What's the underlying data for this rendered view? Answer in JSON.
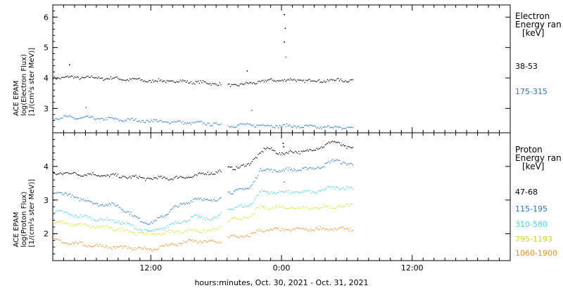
{
  "colors": {
    "black": "#000000",
    "blue": "#1f78d1",
    "cyan": "#3fd8d8",
    "yellow": "#d4e61e",
    "orange": "#ee8c1e"
  },
  "x_axis": {
    "title": "hours:minutes, Oct. 30, 2021 - Oct. 31, 2021",
    "tick_labels": [
      "12:00",
      "0:00",
      "12:00"
    ]
  },
  "electron_panel": {
    "ylabel_line1": "ACE EPAM",
    "ylabel_line2": "log(Electron Flux)",
    "ylabel_line3": "[1/(cm²s ster MeV)]",
    "title_line1": "Electron",
    "title_line2": "Energy ran",
    "unit": "[keV]",
    "channels": [
      {
        "label": "38-53",
        "color": "#000000"
      },
      {
        "label": "175-315",
        "color": "#1f78d1"
      }
    ]
  },
  "proton_panel": {
    "ylabel_line1": "ACE EPAM",
    "ylabel_line2": "log(Proton Flux)",
    "ylabel_line3": "[1/(cm²s ster MeV)]",
    "title_line1": "Proton",
    "title_line2": "Energy ran",
    "unit": "[keV]",
    "channels": [
      {
        "label": "47-68",
        "color": "#000000"
      },
      {
        "label": "115-195",
        "color": "#1f78d1"
      },
      {
        "label": "310-580",
        "color": "#3fd8d8"
      },
      {
        "label": "795-1193",
        "color": "#d4e61e"
      },
      {
        "label": "1060-1900",
        "color": "#ee8c1e"
      }
    ]
  },
  "chart_data": [
    {
      "type": "scatter",
      "panel": "electron",
      "xlabel": "hours:minutes, Oct. 30, 2021 - Oct. 31, 2021",
      "ylabel": "log(Electron Flux) [1/(cm²s ster MeV)]",
      "x_unit": "hours since Oct. 30, 2021 0:00",
      "xlim": [
        3,
        45
      ],
      "ylim": [
        2.2,
        6.4
      ],
      "yticks": [
        3,
        4,
        5,
        6
      ],
      "data_gap_hours": [
        18.4,
        19.0
      ],
      "series": [
        {
          "name": "38-53",
          "color": "#000000",
          "x": [
            3,
            6,
            9,
            12,
            15,
            18,
            19,
            21,
            22,
            24,
            27,
            30.5
          ],
          "y": [
            4.03,
            4.03,
            3.99,
            3.92,
            3.9,
            3.83,
            3.77,
            3.82,
            3.9,
            3.95,
            3.92,
            3.95
          ]
        },
        {
          "name": "175-315",
          "color": "#1f78d1",
          "x": [
            3,
            6,
            9,
            12,
            15,
            18,
            19,
            21,
            24,
            27,
            30.5
          ],
          "y": [
            2.72,
            2.7,
            2.65,
            2.6,
            2.55,
            2.5,
            2.45,
            2.47,
            2.44,
            2.4,
            2.38
          ]
        }
      ],
      "outliers": [
        {
          "x": 4.5,
          "y": 4.45,
          "series": "38-53"
        },
        {
          "x": 6.0,
          "y": 3.05,
          "series": "175-315"
        },
        {
          "x": 20.8,
          "y": 4.25,
          "series": "38-53"
        },
        {
          "x": 24.2,
          "y": 6.1,
          "series": "38-53"
        },
        {
          "x": 24.3,
          "y": 5.65,
          "series": "38-53"
        },
        {
          "x": 24.2,
          "y": 5.2,
          "series": "38-53"
        },
        {
          "x": 24.35,
          "y": 4.7,
          "series": "175-315"
        },
        {
          "x": 21.2,
          "y": 2.95,
          "series": "175-315"
        }
      ]
    },
    {
      "type": "scatter",
      "panel": "proton",
      "xlabel": "hours:minutes, Oct. 30, 2021 - Oct. 31, 2021",
      "ylabel": "log(Proton Flux) [1/(cm²s ster MeV)]",
      "x_unit": "hours since Oct. 30, 2021 0:00",
      "xlim": [
        3,
        45
      ],
      "ylim": [
        1.2,
        5.0
      ],
      "yticks": [
        2,
        3,
        4
      ],
      "data_gap_hours": [
        18.4,
        19.0
      ],
      "series": [
        {
          "name": "47-68",
          "color": "#000000",
          "x": [
            3,
            6,
            9,
            12,
            15,
            18,
            19,
            21,
            21.6,
            22.5,
            24,
            27,
            28.5,
            30.5
          ],
          "y": [
            3.82,
            3.78,
            3.72,
            3.65,
            3.68,
            3.85,
            3.95,
            4.05,
            4.3,
            4.55,
            4.4,
            4.5,
            4.75,
            4.55
          ]
        },
        {
          "name": "115-195",
          "color": "#1f78d1",
          "x": [
            3,
            5,
            7,
            9,
            10.5,
            12,
            14,
            16,
            18,
            19,
            21,
            22,
            24,
            27,
            29,
            30.5
          ],
          "y": [
            3.28,
            3.1,
            2.9,
            2.85,
            2.5,
            2.3,
            2.75,
            3.05,
            3.0,
            3.25,
            3.35,
            3.9,
            3.9,
            3.95,
            4.2,
            4.05
          ]
        },
        {
          "name": "310-580",
          "color": "#3fd8d8",
          "x": [
            3,
            5,
            7,
            9,
            10.5,
            12,
            14,
            16,
            18,
            19,
            21,
            22,
            24,
            27,
            29,
            30.5
          ],
          "y": [
            2.7,
            2.55,
            2.45,
            2.38,
            2.2,
            2.05,
            2.3,
            2.5,
            2.45,
            2.75,
            2.85,
            3.25,
            3.25,
            3.25,
            3.4,
            3.35
          ]
        },
        {
          "name": "795-1193",
          "color": "#d4e61e",
          "x": [
            3,
            6,
            9,
            10.5,
            12,
            15,
            18,
            19,
            21,
            22,
            24,
            27,
            30.5
          ],
          "y": [
            2.35,
            2.25,
            2.15,
            2.05,
            2.0,
            2.1,
            2.1,
            2.4,
            2.5,
            2.8,
            2.8,
            2.78,
            2.85
          ]
        },
        {
          "name": "1060-1900",
          "color": "#ee8c1e",
          "x": [
            3,
            6,
            9,
            12,
            14,
            16,
            18,
            19,
            21,
            22,
            24,
            27,
            30.5
          ],
          "y": [
            1.82,
            1.68,
            1.6,
            1.55,
            1.7,
            1.8,
            1.75,
            1.9,
            1.95,
            2.12,
            2.12,
            2.15,
            2.15
          ]
        }
      ],
      "outliers": [
        {
          "x": 24.1,
          "y": 4.7,
          "series": "47-68"
        },
        {
          "x": 24.15,
          "y": 4.6,
          "series": "47-68"
        },
        {
          "x": 24.2,
          "y": 3.55,
          "series": "115-195"
        }
      ]
    }
  ]
}
